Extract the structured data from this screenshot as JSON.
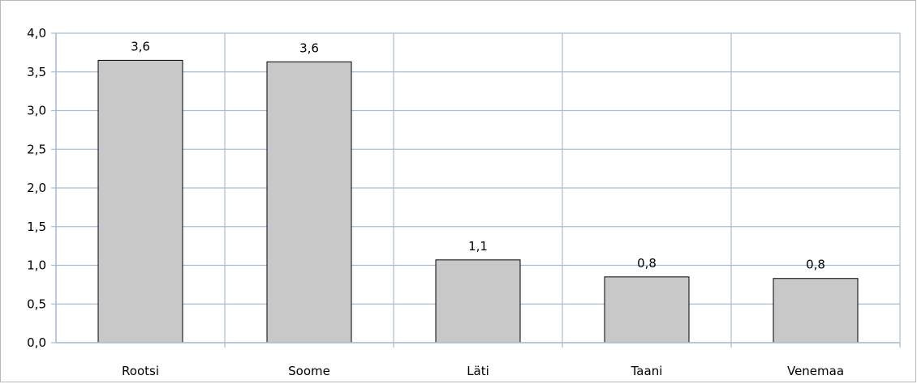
{
  "chart_data": {
    "type": "bar",
    "categories": [
      "Rootsi",
      "Soome",
      "Läti",
      "Taani",
      "Venemaa"
    ],
    "values": [
      3.65,
      3.63,
      1.07,
      0.85,
      0.83
    ],
    "data_labels": [
      "3,6",
      "3,6",
      "1,1",
      "0,8",
      "0,8"
    ],
    "y_tick_labels": [
      "0,0",
      "0,5",
      "1,0",
      "1,5",
      "2,0",
      "2,5",
      "3,0",
      "3,5",
      "4,0"
    ],
    "ylim": [
      0,
      4
    ],
    "y_step": 0.5,
    "title": "",
    "xlabel": "",
    "ylabel": "",
    "grid": true,
    "legend": "none",
    "colors": {
      "bar_fill": "#c8c8c8",
      "bar_stroke": "#000000",
      "grid": "#a9bcd4",
      "frame": "#b7b7b7"
    }
  }
}
